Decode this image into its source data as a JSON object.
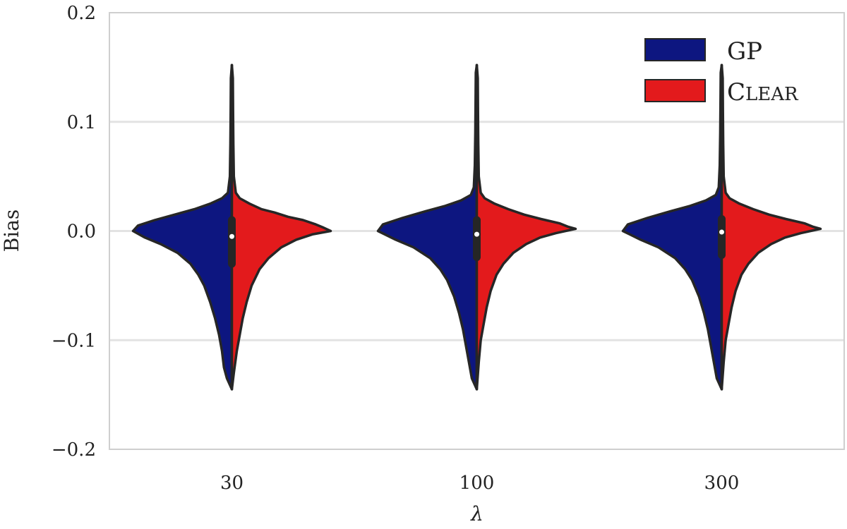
{
  "chart_data": {
    "type": "violin",
    "split": true,
    "title": "",
    "xlabel": "λ",
    "ylabel": "Bias",
    "categories": [
      "30",
      "100",
      "300"
    ],
    "ylim": [
      -0.2,
      0.2
    ],
    "yticks": [
      -0.2,
      -0.1,
      0.0,
      0.1,
      0.2
    ],
    "ytick_labels": [
      "−0.2",
      "−0.1",
      "0.0",
      "0.1",
      "0.2"
    ],
    "grid": "horizontal",
    "legend": {
      "placement": "top-right",
      "entries": [
        {
          "label": "GP",
          "color": "#0d1680"
        },
        {
          "label": "Clear",
          "color": "#e31a1c",
          "smallcaps": true
        }
      ]
    },
    "series": [
      {
        "name": "GP",
        "side": "left",
        "color": "#0d1680",
        "groups": [
          {
            "category": "30",
            "profile": [
              [
                -0.145,
                0.0
              ],
              [
                -0.135,
                0.05
              ],
              [
                -0.125,
                0.08
              ],
              [
                -0.11,
                0.1
              ],
              [
                -0.095,
                0.13
              ],
              [
                -0.08,
                0.17
              ],
              [
                -0.065,
                0.22
              ],
              [
                -0.05,
                0.28
              ],
              [
                -0.04,
                0.34
              ],
              [
                -0.03,
                0.42
              ],
              [
                -0.02,
                0.55
              ],
              [
                -0.012,
                0.72
              ],
              [
                -0.006,
                0.88
              ],
              [
                0.0,
                1.0
              ],
              [
                0.005,
                0.95
              ],
              [
                0.01,
                0.78
              ],
              [
                0.015,
                0.58
              ],
              [
                0.02,
                0.38
              ],
              [
                0.025,
                0.22
              ],
              [
                0.03,
                0.1
              ],
              [
                0.035,
                0.04
              ],
              [
                0.05,
                0.02
              ],
              [
                0.08,
                0.015
              ],
              [
                0.11,
                0.012
              ],
              [
                0.14,
                0.01
              ],
              [
                0.152,
                0.0
              ]
            ]
          },
          {
            "category": "100",
            "profile": [
              [
                -0.145,
                0.0
              ],
              [
                -0.135,
                0.05
              ],
              [
                -0.12,
                0.08
              ],
              [
                -0.105,
                0.11
              ],
              [
                -0.09,
                0.14
              ],
              [
                -0.075,
                0.18
              ],
              [
                -0.06,
                0.23
              ],
              [
                -0.045,
                0.3
              ],
              [
                -0.035,
                0.37
              ],
              [
                -0.025,
                0.47
              ],
              [
                -0.015,
                0.64
              ],
              [
                -0.008,
                0.82
              ],
              [
                0.0,
                1.0
              ],
              [
                0.006,
                0.95
              ],
              [
                0.012,
                0.75
              ],
              [
                0.018,
                0.52
              ],
              [
                0.023,
                0.32
              ],
              [
                0.028,
                0.16
              ],
              [
                0.033,
                0.06
              ],
              [
                0.04,
                0.03
              ],
              [
                0.06,
                0.02
              ],
              [
                0.09,
                0.015
              ],
              [
                0.12,
                0.012
              ],
              [
                0.145,
                0.01
              ],
              [
                0.152,
                0.0
              ]
            ]
          },
          {
            "category": "300",
            "profile": [
              [
                -0.145,
                0.0
              ],
              [
                -0.135,
                0.05
              ],
              [
                -0.12,
                0.08
              ],
              [
                -0.105,
                0.11
              ],
              [
                -0.09,
                0.14
              ],
              [
                -0.075,
                0.18
              ],
              [
                -0.06,
                0.23
              ],
              [
                -0.045,
                0.3
              ],
              [
                -0.035,
                0.37
              ],
              [
                -0.025,
                0.47
              ],
              [
                -0.015,
                0.64
              ],
              [
                -0.008,
                0.82
              ],
              [
                0.0,
                1.0
              ],
              [
                0.006,
                0.95
              ],
              [
                0.012,
                0.75
              ],
              [
                0.018,
                0.52
              ],
              [
                0.023,
                0.32
              ],
              [
                0.028,
                0.16
              ],
              [
                0.033,
                0.06
              ],
              [
                0.04,
                0.03
              ],
              [
                0.06,
                0.02
              ],
              [
                0.09,
                0.015
              ],
              [
                0.12,
                0.012
              ],
              [
                0.145,
                0.01
              ],
              [
                0.152,
                0.0
              ]
            ]
          }
        ]
      },
      {
        "name": "Clear",
        "side": "right",
        "color": "#e31a1c",
        "groups": [
          {
            "category": "30",
            "profile": [
              [
                -0.145,
                0.0
              ],
              [
                -0.13,
                0.02
              ],
              [
                -0.11,
                0.05
              ],
              [
                -0.095,
                0.08
              ],
              [
                -0.08,
                0.11
              ],
              [
                -0.065,
                0.15
              ],
              [
                -0.05,
                0.2
              ],
              [
                -0.035,
                0.28
              ],
              [
                -0.025,
                0.37
              ],
              [
                -0.015,
                0.5
              ],
              [
                -0.008,
                0.65
              ],
              [
                -0.003,
                0.82
              ],
              [
                0.0,
                1.0
              ],
              [
                0.003,
                0.93
              ],
              [
                0.006,
                0.85
              ],
              [
                0.01,
                0.72
              ],
              [
                0.013,
                0.57
              ],
              [
                0.017,
                0.43
              ],
              [
                0.02,
                0.3
              ],
              [
                0.025,
                0.18
              ],
              [
                0.03,
                0.08
              ],
              [
                0.035,
                0.04
              ],
              [
                0.05,
                0.02
              ],
              [
                0.08,
                0.015
              ],
              [
                0.11,
                0.012
              ],
              [
                0.14,
                0.01
              ],
              [
                0.152,
                0.0
              ]
            ]
          },
          {
            "category": "100",
            "profile": [
              [
                -0.145,
                0.0
              ],
              [
                -0.12,
                0.02
              ],
              [
                -0.1,
                0.04
              ],
              [
                -0.085,
                0.07
              ],
              [
                -0.07,
                0.1
              ],
              [
                -0.055,
                0.14
              ],
              [
                -0.04,
                0.2
              ],
              [
                -0.03,
                0.27
              ],
              [
                -0.02,
                0.37
              ],
              [
                -0.012,
                0.5
              ],
              [
                -0.006,
                0.64
              ],
              [
                -0.002,
                0.8
              ],
              [
                0.002,
                1.0
              ],
              [
                0.004,
                0.92
              ],
              [
                0.007,
                0.84
              ],
              [
                0.011,
                0.65
              ],
              [
                0.015,
                0.48
              ],
              [
                0.02,
                0.32
              ],
              [
                0.025,
                0.18
              ],
              [
                0.03,
                0.08
              ],
              [
                0.035,
                0.04
              ],
              [
                0.05,
                0.02
              ],
              [
                0.08,
                0.015
              ],
              [
                0.11,
                0.012
              ],
              [
                0.14,
                0.01
              ],
              [
                0.152,
                0.0
              ]
            ]
          },
          {
            "category": "300",
            "profile": [
              [
                -0.145,
                0.0
              ],
              [
                -0.12,
                0.02
              ],
              [
                -0.1,
                0.04
              ],
              [
                -0.085,
                0.07
              ],
              [
                -0.07,
                0.1
              ],
              [
                -0.055,
                0.14
              ],
              [
                -0.04,
                0.2
              ],
              [
                -0.03,
                0.27
              ],
              [
                -0.02,
                0.37
              ],
              [
                -0.012,
                0.5
              ],
              [
                -0.006,
                0.64
              ],
              [
                -0.002,
                0.8
              ],
              [
                0.002,
                1.0
              ],
              [
                0.004,
                0.92
              ],
              [
                0.007,
                0.84
              ],
              [
                0.011,
                0.65
              ],
              [
                0.015,
                0.48
              ],
              [
                0.02,
                0.32
              ],
              [
                0.025,
                0.18
              ],
              [
                0.03,
                0.08
              ],
              [
                0.035,
                0.04
              ],
              [
                0.05,
                0.02
              ],
              [
                0.08,
                0.015
              ],
              [
                0.11,
                0.012
              ],
              [
                0.14,
                0.01
              ],
              [
                0.152,
                0.0
              ]
            ]
          }
        ]
      }
    ],
    "inner_box": [
      {
        "category": "30",
        "q1": -0.03,
        "median": -0.005,
        "q3": 0.01
      },
      {
        "category": "100",
        "q1": -0.024,
        "median": -0.003,
        "q3": 0.01
      },
      {
        "category": "300",
        "q1": -0.022,
        "median": -0.001,
        "q3": 0.011
      }
    ]
  }
}
